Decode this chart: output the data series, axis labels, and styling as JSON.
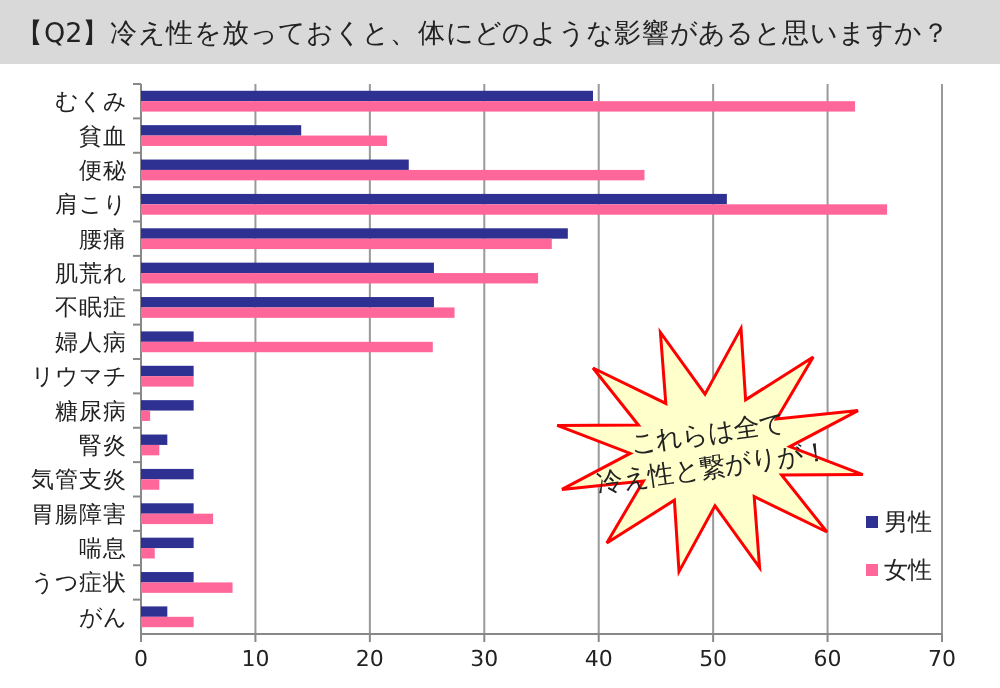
{
  "chart_data": {
    "type": "bar",
    "orientation": "horizontal",
    "title": "【Q2】冷え性を放っておくと、体にどのような影響があると思いますか？",
    "categories": [
      "むくみ",
      "貧血",
      "便秘",
      "肩こり",
      "腰痛",
      "肌荒れ",
      "不眠症",
      "婦人病",
      "リウマチ",
      "糖尿病",
      "腎炎",
      "気管支炎",
      "胃腸障害",
      "喘息",
      "うつ症状",
      "がん"
    ],
    "series": [
      {
        "name": "男性",
        "color": "#2e3192",
        "values": [
          39.5,
          14.0,
          23.4,
          51.2,
          37.3,
          25.6,
          25.6,
          4.6,
          4.6,
          4.6,
          2.3,
          4.6,
          4.6,
          4.6,
          4.6,
          2.3
        ]
      },
      {
        "name": "女性",
        "color": "#ff6699",
        "values": [
          62.4,
          21.5,
          44.0,
          65.2,
          35.9,
          34.7,
          27.4,
          25.5,
          4.6,
          0.8,
          1.6,
          1.6,
          6.3,
          1.2,
          8.0,
          4.6
        ]
      }
    ],
    "xlim": [
      0,
      70
    ],
    "xticks": [
      0,
      10,
      20,
      30,
      40,
      50,
      60,
      70
    ],
    "grid": "x",
    "legend": "bottom right",
    "annotations": [
      "これらは全て\n冷え性と繋がりが！"
    ]
  }
}
